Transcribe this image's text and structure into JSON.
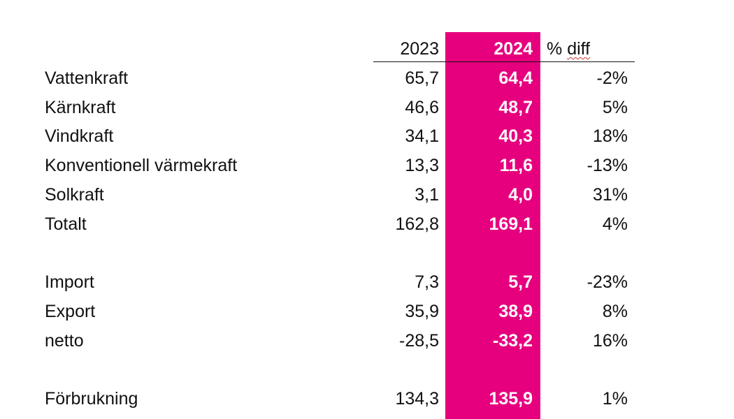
{
  "table": {
    "headers": {
      "y2023": "2023",
      "y2024": "2024",
      "diff": "% diff",
      "diff_prefix": "% ",
      "diff_word": "diff"
    },
    "rows": [
      {
        "label": "Vattenkraft",
        "y2023": "65,7",
        "y2024": "64,4",
        "diff": "-2%"
      },
      {
        "label": "Kärnkraft",
        "y2023": "46,6",
        "y2024": "48,7",
        "diff": "5%"
      },
      {
        "label": "Vindkraft",
        "y2023": "34,1",
        "y2024": "40,3",
        "diff": "18%"
      },
      {
        "label": "Konventionell värmekraft",
        "y2023": "13,3",
        "y2024": "11,6",
        "diff": "-13%"
      },
      {
        "label": "Solkraft",
        "y2023": "3,1",
        "y2024": "4,0",
        "diff": "31%"
      },
      {
        "label": "Totalt",
        "y2023": "162,8",
        "y2024": "169,1",
        "diff": "4%"
      },
      {
        "label": "Import",
        "y2023": "7,3",
        "y2024": "5,7",
        "diff": "-23%"
      },
      {
        "label": "Export",
        "y2023": "35,9",
        "y2024": "38,9",
        "diff": "8%"
      },
      {
        "label": "netto",
        "y2023": "-28,5",
        "y2024": "-33,2",
        "diff": "16%"
      },
      {
        "label": "Förbrukning",
        "y2023": "134,3",
        "y2024": "135,9",
        "diff": "1%"
      }
    ]
  },
  "colors": {
    "highlight": "#e6007e",
    "highlight_text": "#ffffff",
    "text": "#111111",
    "spellcheck": "#d0312d"
  }
}
